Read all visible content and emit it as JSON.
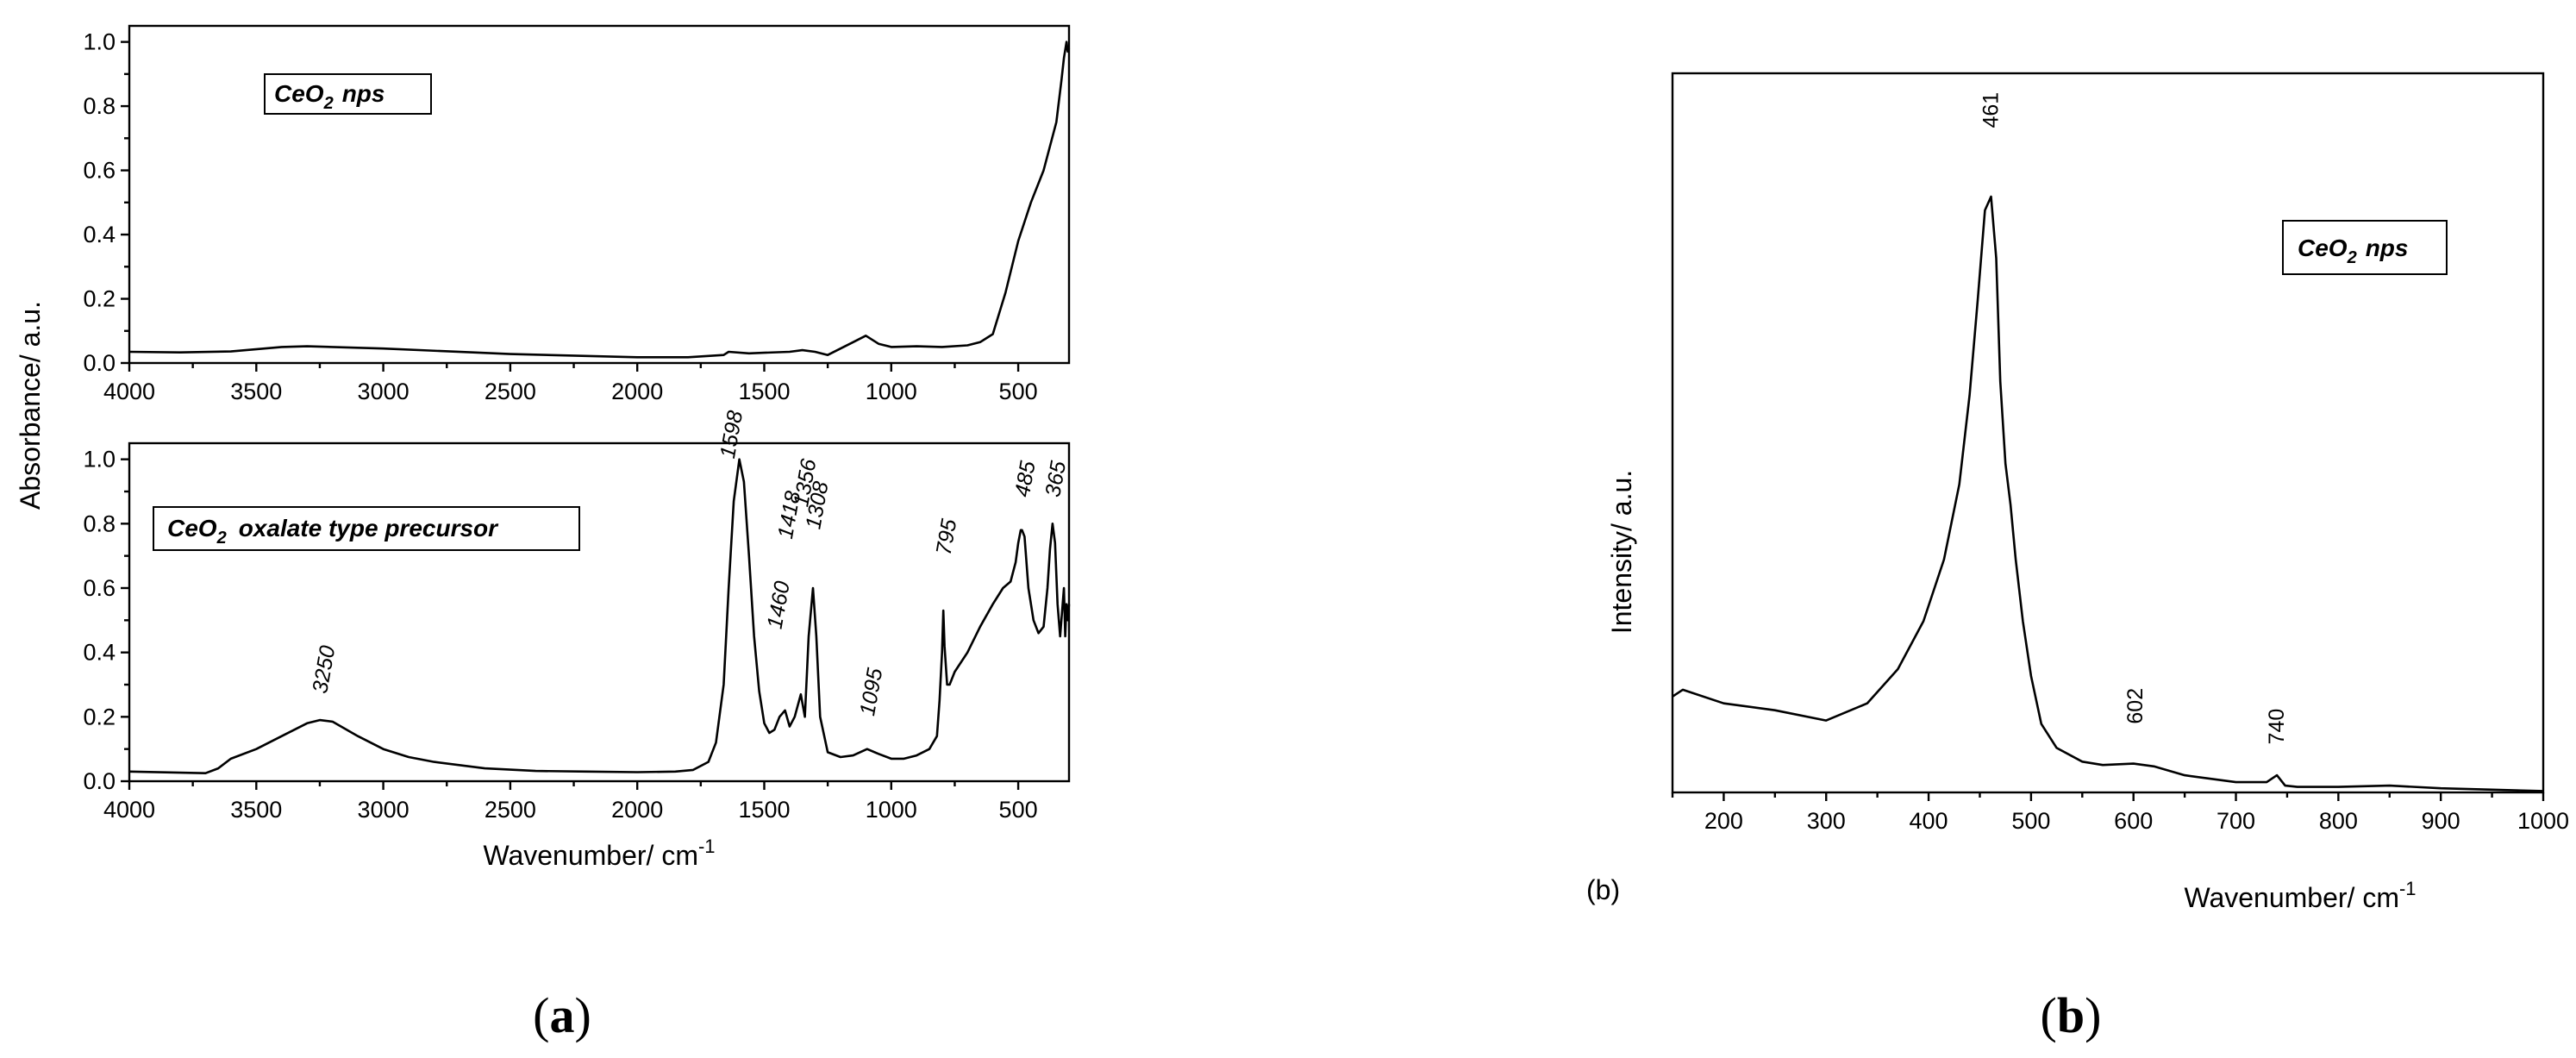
{
  "chart_data": [
    {
      "type": "line",
      "panel": "a-top",
      "legend": {
        "formula_base": "CeO",
        "formula_sub": "2",
        "rest": "nps"
      },
      "xlim": [
        4000,
        300
      ],
      "ylim": [
        0,
        1.05
      ],
      "x_ticks": [
        "4000",
        "3500",
        "3000",
        "2500",
        "2000",
        "1500",
        "1000",
        "500"
      ],
      "y_ticks": [
        "0.0",
        "0.2",
        "0.4",
        "0.6",
        "0.8",
        "1.0"
      ],
      "series": [
        {
          "x": [
            4000,
            3800,
            3600,
            3400,
            3300,
            3000,
            2500,
            2000,
            1800,
            1660,
            1640,
            1560,
            1500,
            1400,
            1350,
            1300,
            1250,
            1150,
            1100,
            1050,
            1000,
            900,
            800,
            700,
            650,
            600,
            550,
            500,
            450,
            400,
            350,
            330,
            320,
            310,
            305,
            300
          ],
          "y": [
            0.035,
            0.033,
            0.036,
            0.05,
            0.052,
            0.045,
            0.028,
            0.018,
            0.018,
            0.025,
            0.035,
            0.03,
            0.032,
            0.035,
            0.04,
            0.035,
            0.025,
            0.065,
            0.085,
            0.06,
            0.05,
            0.052,
            0.05,
            0.055,
            0.065,
            0.09,
            0.22,
            0.38,
            0.5,
            0.6,
            0.75,
            0.88,
            0.95,
            1.0,
            0.97,
            0.98
          ]
        }
      ]
    },
    {
      "type": "line",
      "panel": "a-bottom",
      "legend": {
        "formula_base": "CeO",
        "formula_sub": "2",
        "rest": "oxalate type precursor"
      },
      "xlabel": "Wavenumber/ cm",
      "xlabel_sup": "-1",
      "xlim": [
        4000,
        300
      ],
      "ylim": [
        0,
        1.05
      ],
      "x_ticks": [
        "4000",
        "3500",
        "3000",
        "2500",
        "2000",
        "1500",
        "1000",
        "500"
      ],
      "y_ticks": [
        "0.0",
        "0.2",
        "0.4",
        "0.6",
        "0.8",
        "1.0"
      ],
      "annotations": [
        "3250",
        "1598",
        "1460",
        "1418",
        "1356",
        "1308",
        "1095",
        "795",
        "485",
        "365"
      ],
      "series": [
        {
          "x": [
            4000,
            3700,
            3650,
            3600,
            3500,
            3400,
            3300,
            3250,
            3200,
            3100,
            3000,
            2900,
            2800,
            2600,
            2400,
            2200,
            2000,
            1850,
            1780,
            1720,
            1690,
            1660,
            1640,
            1620,
            1598,
            1580,
            1560,
            1540,
            1520,
            1500,
            1480,
            1460,
            1440,
            1418,
            1400,
            1380,
            1356,
            1340,
            1325,
            1308,
            1295,
            1280,
            1250,
            1200,
            1150,
            1095,
            1050,
            1000,
            950,
            900,
            850,
            820,
            810,
            800,
            795,
            790,
            780,
            770,
            750,
            700,
            650,
            600,
            560,
            530,
            510,
            500,
            490,
            485,
            475,
            460,
            440,
            420,
            400,
            385,
            375,
            365,
            355,
            345,
            335,
            325,
            320,
            315,
            310,
            305,
            300
          ],
          "y": [
            0.03,
            0.025,
            0.04,
            0.07,
            0.1,
            0.14,
            0.18,
            0.19,
            0.185,
            0.14,
            0.1,
            0.075,
            0.06,
            0.04,
            0.032,
            0.03,
            0.028,
            0.03,
            0.035,
            0.06,
            0.12,
            0.3,
            0.6,
            0.87,
            1.0,
            0.93,
            0.7,
            0.45,
            0.28,
            0.18,
            0.15,
            0.16,
            0.2,
            0.22,
            0.17,
            0.2,
            0.27,
            0.2,
            0.45,
            0.6,
            0.45,
            0.2,
            0.09,
            0.075,
            0.08,
            0.1,
            0.085,
            0.07,
            0.07,
            0.08,
            0.1,
            0.14,
            0.25,
            0.4,
            0.53,
            0.42,
            0.3,
            0.3,
            0.34,
            0.4,
            0.48,
            0.55,
            0.6,
            0.62,
            0.68,
            0.74,
            0.78,
            0.78,
            0.76,
            0.6,
            0.5,
            0.46,
            0.48,
            0.6,
            0.72,
            0.8,
            0.74,
            0.55,
            0.45,
            0.55,
            0.6,
            0.45,
            0.55,
            0.5,
            0.55
          ]
        }
      ]
    },
    {
      "type": "line",
      "panel": "b",
      "legend": {
        "formula_base": "CeO",
        "formula_sub": "2",
        "rest": "nps"
      },
      "xlabel": "Wavenumber/ cm",
      "xlabel_sup": "-1",
      "ylabel": "Intensity/ a.u.",
      "corner_label": "(b)",
      "xlim": [
        150,
        1000
      ],
      "ylim": [
        0,
        1.05
      ],
      "x_ticks": [
        "200",
        "300",
        "400",
        "500",
        "600",
        "700",
        "800",
        "900",
        "1000"
      ],
      "annotations": [
        "461",
        "602",
        "740"
      ],
      "series": [
        {
          "x": [
            150,
            160,
            200,
            250,
            300,
            340,
            370,
            395,
            415,
            430,
            440,
            448,
            455,
            461,
            466,
            470,
            475,
            480,
            485,
            492,
            500,
            510,
            525,
            550,
            570,
            600,
            620,
            650,
            700,
            730,
            740,
            748,
            760,
            800,
            850,
            900,
            950,
            1000
          ],
          "y": [
            0.14,
            0.15,
            0.13,
            0.12,
            0.105,
            0.13,
            0.18,
            0.25,
            0.34,
            0.45,
            0.58,
            0.72,
            0.85,
            0.87,
            0.78,
            0.6,
            0.48,
            0.42,
            0.34,
            0.25,
            0.17,
            0.1,
            0.065,
            0.045,
            0.04,
            0.042,
            0.038,
            0.025,
            0.015,
            0.015,
            0.025,
            0.01,
            0.008,
            0.008,
            0.01,
            0.006,
            0.004,
            0.002
          ]
        }
      ]
    }
  ],
  "shared": {
    "a_ylabel": "Absorbance/ a.u.",
    "captions": {
      "a": "a",
      "b": "b"
    }
  }
}
